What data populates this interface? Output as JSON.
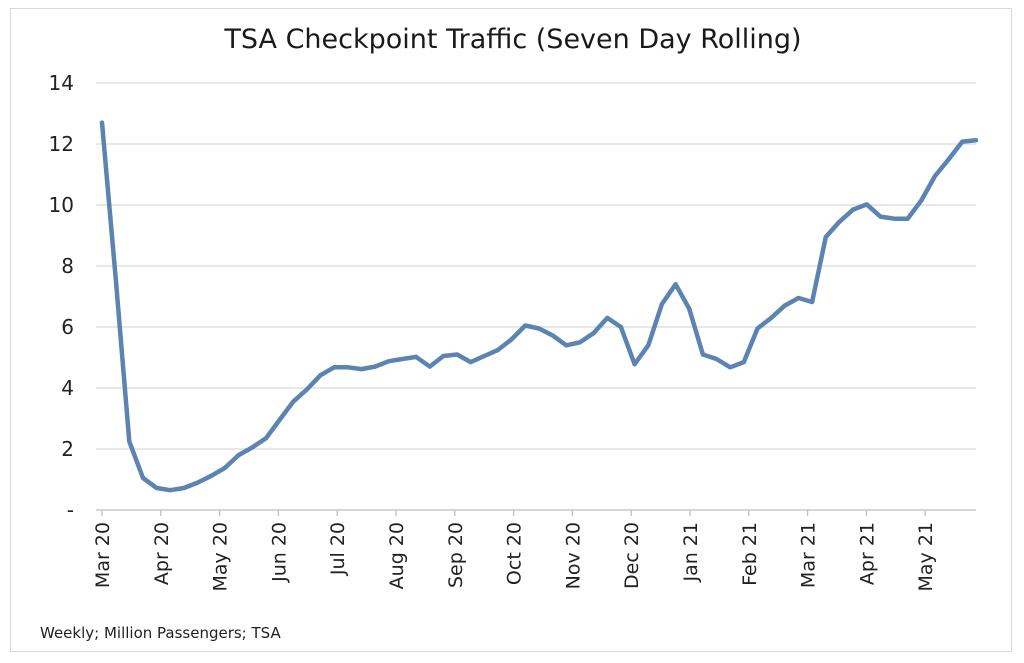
{
  "chart_data": {
    "type": "line",
    "title": "TSA Checkpoint Traffic (Seven Day Rolling)",
    "note": "Weekly; Million Passengers; TSA",
    "ylim": [
      0,
      14
    ],
    "yticks": [
      {
        "value": 0,
        "label": "-"
      },
      {
        "value": 2,
        "label": "2"
      },
      {
        "value": 4,
        "label": "4"
      },
      {
        "value": 6,
        "label": "6"
      },
      {
        "value": 8,
        "label": "8"
      },
      {
        "value": 10,
        "label": "10"
      },
      {
        "value": 12,
        "label": "12"
      },
      {
        "value": 14,
        "label": "14"
      }
    ],
    "xlabels": [
      "Mar 20",
      "Apr 20",
      "May 20",
      "Jun 20",
      "Jul 20",
      "Aug 20",
      "Sep 20",
      "Oct 20",
      "Nov 20",
      "Dec 20",
      "Jan 21",
      "Feb 21",
      "Mar 21",
      "Apr 21",
      "May 21"
    ],
    "grid": true,
    "color": "#5b84b1",
    "series": [
      {
        "values": [
          12.7,
          7.6,
          2.25,
          1.05,
          0.72,
          0.65,
          0.72,
          0.9,
          1.12,
          1.38,
          1.8,
          2.05,
          2.35,
          2.95,
          3.55,
          3.95,
          4.42,
          4.68,
          4.68,
          4.62,
          4.7,
          4.88,
          4.95,
          5.02,
          4.7,
          5.05,
          5.1,
          4.85,
          5.05,
          5.25,
          5.6,
          6.05,
          5.95,
          5.72,
          5.4,
          5.5,
          5.8,
          6.3,
          6.0,
          4.78,
          5.4,
          6.75,
          7.4,
          6.6,
          5.1,
          4.95,
          4.68,
          4.85,
          5.95,
          6.3,
          6.7,
          6.95,
          6.82,
          8.95,
          9.45,
          9.85,
          10.02,
          9.62,
          9.55,
          9.55,
          10.15,
          10.95,
          11.5,
          12.08,
          12.12
        ]
      }
    ]
  }
}
